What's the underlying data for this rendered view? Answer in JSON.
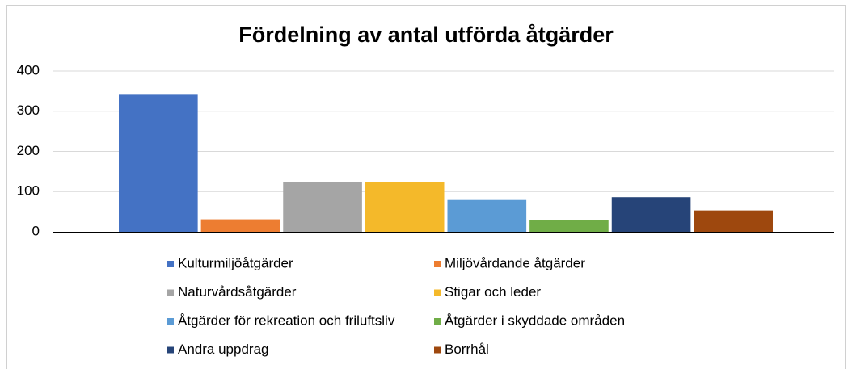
{
  "chart_data": {
    "type": "bar",
    "title": "Fördelning av antal utförda åtgärder",
    "categories": [
      null
    ],
    "series": [
      {
        "name": "Kulturmiljöåtgärder",
        "color": "#4472c4",
        "values": [
          341
        ]
      },
      {
        "name": "Miljövårdande åtgärder",
        "color": "#ed7d31",
        "values": [
          31
        ]
      },
      {
        "name": "Naturvårdsåtgärder",
        "color": "#a5a5a5",
        "values": [
          124
        ]
      },
      {
        "name": "Stigar och leder",
        "color": "#f4b92a",
        "values": [
          123
        ]
      },
      {
        "name": "Åtgärder för rekreation och friluftsliv",
        "color": "#5b9bd5",
        "values": [
          79
        ]
      },
      {
        "name": "Åtgärder i skyddade områden",
        "color": "#70ad47",
        "values": [
          30
        ]
      },
      {
        "name": "Andra uppdrag",
        "color": "#264478",
        "values": [
          86
        ]
      },
      {
        "name": "Borrhål",
        "color": "#9e480e",
        "values": [
          53
        ]
      }
    ],
    "ylim": [
      0,
      400
    ],
    "yticks": [
      0,
      100,
      200,
      300,
      400
    ],
    "grid": true,
    "legend": "bottom"
  }
}
